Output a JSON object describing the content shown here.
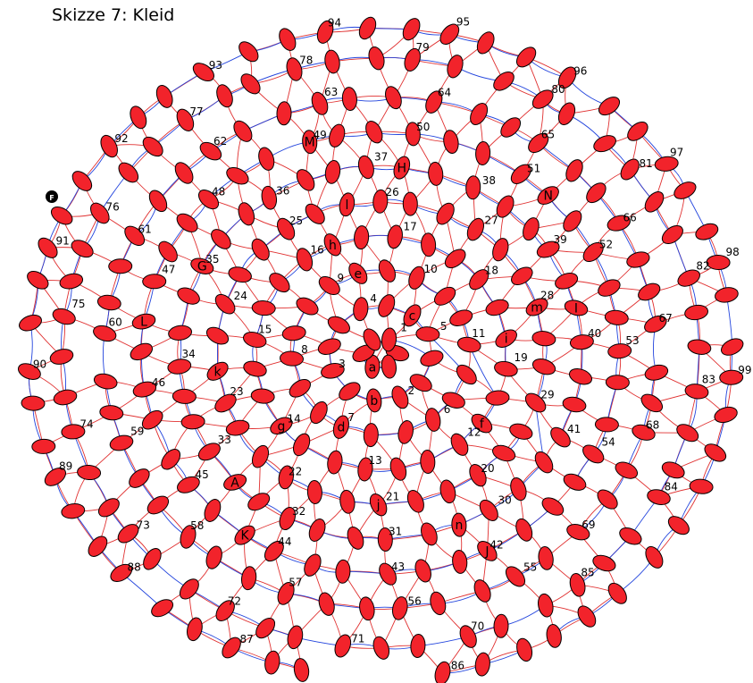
{
  "title": "Skizze 7: Kleid",
  "start_marker": "F",
  "colors": {
    "node": "#f2232b",
    "thread": "#e03030",
    "path": "#2244dd"
  },
  "number_labels": [
    "1",
    "2",
    "3",
    "4",
    "5",
    "6",
    "7",
    "8",
    "9",
    "10",
    "11",
    "12",
    "13",
    "14",
    "15",
    "16",
    "17",
    "18",
    "19",
    "20",
    "21",
    "22",
    "23",
    "24",
    "25",
    "26",
    "27",
    "28",
    "29",
    "30",
    "31",
    "32",
    "33",
    "34",
    "35",
    "36",
    "37",
    "38",
    "39",
    "40",
    "41",
    "42",
    "43",
    "44",
    "45",
    "46",
    "47",
    "48",
    "49",
    "50",
    "51",
    "52",
    "53",
    "54",
    "55",
    "56",
    "57",
    "58",
    "59",
    "60",
    "61",
    "62",
    "63",
    "64",
    "65",
    "66",
    "67",
    "68",
    "69",
    "70",
    "71",
    "72",
    "73",
    "74",
    "75",
    "76",
    "77",
    "78",
    "79",
    "80",
    "81",
    "82",
    "83",
    "84",
    "85",
    "86",
    "87",
    "88",
    "89",
    "90",
    "91",
    "92",
    "93",
    "94",
    "95",
    "96",
    "97",
    "98",
    "99"
  ],
  "letter_labels": [
    "a",
    "b",
    "c",
    "d",
    "e",
    "f",
    "g",
    "h",
    "i",
    "j",
    "k",
    "l",
    "m",
    "n",
    "A",
    "G",
    "H",
    "I",
    "J",
    "K",
    "L",
    "M",
    "N"
  ]
}
